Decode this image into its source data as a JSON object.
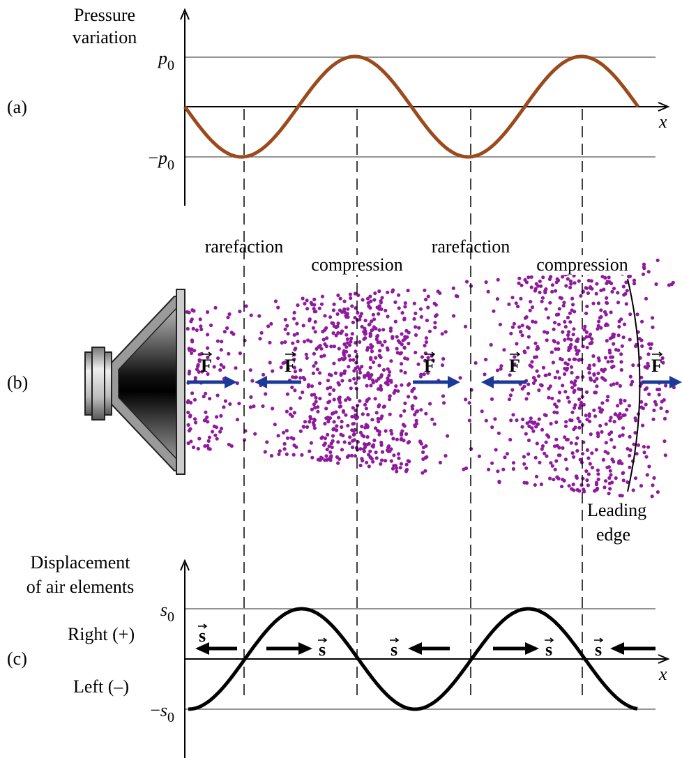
{
  "panel_a": {
    "label": "(a)",
    "axis_title": [
      "Pressure",
      "variation"
    ],
    "top_level": {
      "base": "p",
      "sub": "0"
    },
    "bottom_level": {
      "sign": "−",
      "base": "p",
      "sub": "0"
    },
    "x_label": "x"
  },
  "panel_b": {
    "label": "(b)",
    "regions": [
      "rarefaction",
      "compression",
      "rarefaction",
      "compression"
    ],
    "force_label": "F",
    "leading_edge": [
      "Leading",
      "edge"
    ]
  },
  "panel_c": {
    "label": "(c)",
    "axis_title": [
      "Displacement",
      "of air elements"
    ],
    "top_level": {
      "base": "s",
      "sub": "0"
    },
    "bottom_level": {
      "sign": "−",
      "base": "s",
      "sub": "0"
    },
    "right": "Right (+)",
    "left": "Left (–)",
    "x_label": "x",
    "displacement_label": "s"
  }
}
